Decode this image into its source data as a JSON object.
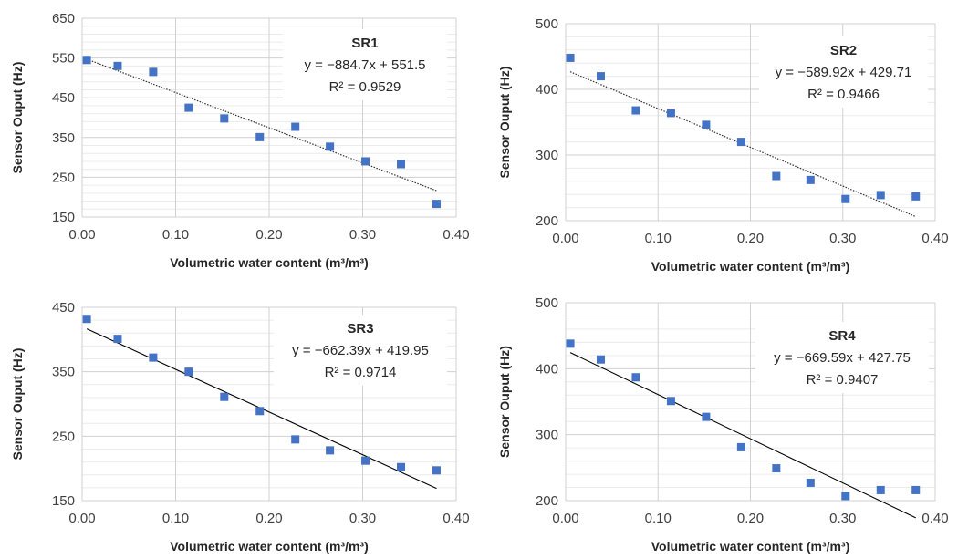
{
  "chart_data": [
    {
      "type": "scatter",
      "title": "",
      "xlabel": "Volumetric water content (m³/m³)",
      "ylabel": "Sensor Ouput (Hz)",
      "xlim": [
        0,
        0.4
      ],
      "ylim": [
        150,
        650
      ],
      "xticks": [
        "0.00",
        "0.10",
        "0.20",
        "0.30",
        "0.40"
      ],
      "yticks": [
        "150",
        "250",
        "350",
        "450",
        "550",
        "650"
      ],
      "x": [
        0.005,
        0.038,
        0.076,
        0.114,
        0.152,
        0.19,
        0.228,
        0.265,
        0.303,
        0.341,
        0.379
      ],
      "y": [
        545,
        530,
        515,
        425,
        398,
        351,
        377,
        327,
        290,
        283,
        183
      ],
      "trendline": {
        "slope": -884.7,
        "intercept": 551.5,
        "x_range": [
          0.005,
          0.379
        ],
        "style": "dotted"
      },
      "annotation": {
        "title": "SR1",
        "equation": "y = −884.7x + 551.5",
        "r2": "R² = 0.9529"
      },
      "grid": true,
      "marker_color": "#4472C4"
    },
    {
      "type": "scatter",
      "title": "",
      "xlabel": "Volumetric water content (m³/m³)",
      "ylabel": "Sensor Ouput (Hz)",
      "xlim": [
        0,
        0.4
      ],
      "ylim": [
        200,
        500
      ],
      "xticks": [
        "0.00",
        "0.10",
        "0.20",
        "0.30",
        "0.40"
      ],
      "yticks": [
        "200",
        "300",
        "400",
        "500"
      ],
      "x": [
        0.005,
        0.038,
        0.076,
        0.114,
        0.152,
        0.19,
        0.228,
        0.265,
        0.303,
        0.341,
        0.379
      ],
      "y": [
        448,
        420,
        368,
        364,
        346,
        320,
        268,
        262,
        233,
        239,
        237
      ],
      "trendline": {
        "slope": -589.92,
        "intercept": 429.71,
        "x_range": [
          0.005,
          0.379
        ],
        "style": "dotted"
      },
      "annotation": {
        "title": "SR2",
        "equation": "y = −589.92x + 429.71",
        "r2": "R² = 0.9466"
      },
      "grid": true,
      "marker_color": "#4472C4"
    },
    {
      "type": "scatter",
      "title": "",
      "xlabel": "Volumetric water content (m³/m³)",
      "ylabel": "Sensor Ouput (Hz)",
      "xlim": [
        0,
        0.4
      ],
      "ylim": [
        150,
        450
      ],
      "xticks": [
        "0.00",
        "0.10",
        "0.20",
        "0.30",
        "0.40"
      ],
      "yticks": [
        "150",
        "250",
        "350",
        "450"
      ],
      "x": [
        0.005,
        0.038,
        0.076,
        0.114,
        0.152,
        0.19,
        0.228,
        0.265,
        0.303,
        0.341,
        0.379
      ],
      "y": [
        432,
        401,
        372,
        350,
        311,
        289,
        245,
        228,
        212,
        202,
        197
      ],
      "trendline": {
        "slope": -662.39,
        "intercept": 419.95,
        "x_range": [
          0.005,
          0.379
        ],
        "style": "solid"
      },
      "annotation": {
        "title": "SR3",
        "equation": "y = −662.39x + 419.95",
        "r2": "R² = 0.9714"
      },
      "grid": true,
      "marker_color": "#4472C4"
    },
    {
      "type": "scatter",
      "title": "",
      "xlabel": "Volumetric water content (m³/m³)",
      "ylabel": "Sensor Ouput (Hz)",
      "xlim": [
        0,
        0.4
      ],
      "ylim": [
        200,
        500
      ],
      "xticks": [
        "0.00",
        "0.10",
        "0.20",
        "0.30",
        "0.40"
      ],
      "yticks": [
        "200",
        "300",
        "400",
        "500"
      ],
      "x": [
        0.005,
        0.038,
        0.076,
        0.114,
        0.152,
        0.19,
        0.228,
        0.265,
        0.303,
        0.341,
        0.379
      ],
      "y": [
        438,
        414,
        387,
        351,
        327,
        281,
        249,
        227,
        207,
        216,
        216
      ],
      "trendline": {
        "slope": -669.59,
        "intercept": 427.75,
        "x_range": [
          0.005,
          0.379
        ],
        "style": "solid"
      },
      "annotation": {
        "title": "SR4",
        "equation": "y = −669.59x + 427.75",
        "r2": "R² = 0.9407"
      },
      "grid": true,
      "marker_color": "#4472C4"
    }
  ]
}
